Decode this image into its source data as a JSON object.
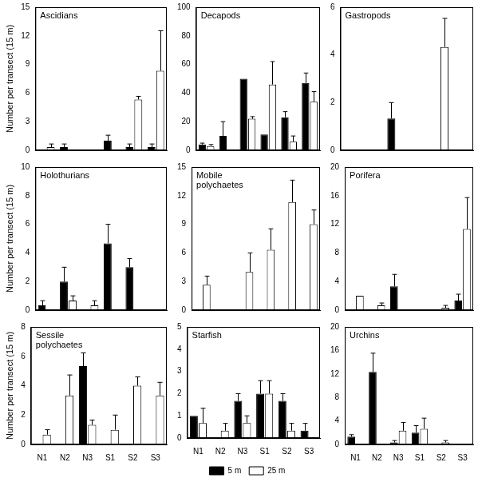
{
  "chart_data": [
    {
      "type": "bar",
      "title": "Ascidians",
      "y_label": "Number per transect (15 m)",
      "tick_labels": "y",
      "categories": [
        "N1",
        "N2",
        "N3",
        "S1",
        "S2",
        "S3"
      ],
      "series": [
        {
          "name": "5 m",
          "color": "#000000",
          "values": [
            null,
            0.33,
            null,
            1,
            0.33,
            0.33
          ],
          "errors": [
            null,
            0.33,
            null,
            0.58,
            0.33,
            0.33
          ]
        },
        {
          "name": "25 m",
          "color": "#ffffff",
          "values": [
            0.33,
            null,
            null,
            null,
            5.33,
            8.33
          ],
          "errors": [
            0.33,
            null,
            null,
            null,
            0.33,
            4.2
          ]
        }
      ],
      "ylim": [
        0,
        15
      ],
      "yticks": [
        0,
        3,
        6,
        9,
        12,
        15
      ]
    },
    {
      "type": "bar",
      "title": "Decapods",
      "tick_labels": "y",
      "categories": [
        "N1",
        "N2",
        "N3",
        "S1",
        "S2",
        "S3"
      ],
      "series": [
        {
          "name": "5 m",
          "color": "#000000",
          "values": [
            4,
            10,
            50,
            11,
            23,
            47
          ],
          "errors": [
            1,
            10,
            null,
            null,
            4,
            7
          ]
        },
        {
          "name": "25 m",
          "color": "#ffffff",
          "values": [
            3,
            null,
            22,
            46,
            6,
            34
          ],
          "errors": [
            1,
            null,
            1.5,
            16,
            4,
            7
          ]
        }
      ],
      "ylim": [
        0,
        100
      ],
      "yticks": [
        0,
        20,
        40,
        60,
        80,
        100
      ]
    },
    {
      "type": "bar",
      "title": "Gastropods",
      "tick_labels": "y",
      "categories": [
        "N1",
        "N2",
        "N3",
        "S1",
        "S2",
        "S3"
      ],
      "series": [
        {
          "name": "5 m",
          "color": "#000000",
          "values": [
            null,
            null,
            1.33,
            null,
            null,
            null
          ],
          "errors": [
            null,
            null,
            0.67,
            null,
            null,
            null
          ]
        },
        {
          "name": "25 m",
          "color": "#ffffff",
          "values": [
            null,
            null,
            null,
            null,
            4.33,
            null
          ],
          "errors": [
            null,
            null,
            null,
            null,
            1.2,
            null
          ]
        }
      ],
      "ylim": [
        0,
        6
      ],
      "yticks": [
        0,
        2,
        4,
        6
      ]
    },
    {
      "type": "bar",
      "title": "Holothurians",
      "y_label": "Number per transect (15 m)",
      "tick_labels": "y",
      "categories": [
        "N1",
        "N2",
        "N3",
        "S1",
        "S2",
        "S3"
      ],
      "series": [
        {
          "name": "5 m",
          "color": "#000000",
          "values": [
            0.33,
            2,
            null,
            4.67,
            3,
            null
          ],
          "errors": [
            0.33,
            1,
            null,
            1.33,
            0.6,
            null
          ]
        },
        {
          "name": "25 m",
          "color": "#ffffff",
          "values": [
            null,
            0.67,
            0.33,
            null,
            null,
            null
          ],
          "errors": [
            null,
            0.33,
            0.33,
            null,
            null,
            null
          ]
        }
      ],
      "ylim": [
        0,
        10
      ],
      "yticks": [
        0,
        2,
        4,
        6,
        8,
        10
      ]
    },
    {
      "type": "bar",
      "title": "Mobile polychaetes",
      "tick_labels": "y",
      "categories": [
        "N1",
        "N2",
        "N3",
        "S1",
        "S2",
        "S3"
      ],
      "series": [
        {
          "name": "5 m",
          "color": "#000000",
          "values": [
            null,
            null,
            null,
            null,
            null,
            null
          ],
          "errors": [
            null,
            null,
            null,
            null,
            null,
            null
          ]
        },
        {
          "name": "25 m",
          "color": "#ffffff",
          "values": [
            2.67,
            null,
            4,
            6.33,
            11.33,
            9
          ],
          "errors": [
            0.9,
            null,
            2,
            2.2,
            2.3,
            1.5
          ]
        }
      ],
      "ylim": [
        0,
        15
      ],
      "yticks": [
        0,
        3,
        6,
        9,
        12,
        15
      ]
    },
    {
      "type": "bar",
      "title": "Porifera",
      "tick_labels": "y",
      "categories": [
        "N1",
        "N2",
        "N3",
        "S1",
        "S2",
        "S3"
      ],
      "series": [
        {
          "name": "5 m",
          "color": "#000000",
          "values": [
            null,
            null,
            3.33,
            null,
            null,
            1.33
          ],
          "errors": [
            null,
            null,
            1.67,
            null,
            null,
            0.9
          ]
        },
        {
          "name": "25 m",
          "color": "#ffffff",
          "values": [
            2,
            0.67,
            null,
            null,
            0.33,
            11.33
          ],
          "errors": [
            null,
            0.33,
            null,
            null,
            0.33,
            4.4
          ]
        }
      ],
      "ylim": [
        0,
        20
      ],
      "yticks": [
        0,
        4,
        8,
        12,
        16,
        20
      ]
    },
    {
      "type": "bar",
      "title": "Sessile polychaetes",
      "y_label": "Number per transect (15 m)",
      "categories": [
        "N1",
        "N2",
        "N3",
        "S1",
        "S2",
        "S3"
      ],
      "series": [
        {
          "name": "5 m",
          "color": "#000000",
          "values": [
            null,
            null,
            5.33,
            null,
            null,
            null
          ],
          "errors": [
            null,
            null,
            0.9,
            null,
            null,
            null
          ]
        },
        {
          "name": "25 m",
          "color": "#ffffff",
          "values": [
            0.67,
            3.33,
            1.33,
            1,
            4,
            3.33
          ],
          "errors": [
            0.33,
            1.4,
            0.33,
            1,
            0.6,
            0.9
          ]
        }
      ],
      "ylim": [
        0,
        8
      ],
      "yticks": [
        0,
        2,
        4,
        6,
        8
      ]
    },
    {
      "type": "bar",
      "title": "Starfish",
      "legend": "bottom",
      "categories": [
        "N1",
        "N2",
        "N3",
        "S1",
        "S2",
        "S3"
      ],
      "series": [
        {
          "name": "5 m",
          "color": "#000000",
          "values": [
            1,
            null,
            1.67,
            2,
            1.67,
            0.33
          ],
          "errors": [
            null,
            null,
            0.33,
            0.58,
            0.33,
            0.33
          ]
        },
        {
          "name": "25 m",
          "color": "#ffffff",
          "values": [
            0.67,
            0.33,
            0.67,
            2,
            0.33,
            null
          ],
          "errors": [
            0.67,
            0.33,
            0.33,
            0.58,
            0.33,
            null
          ]
        }
      ],
      "ylim": [
        0,
        5
      ],
      "yticks": [
        0,
        1,
        2,
        3,
        4,
        5
      ]
    },
    {
      "type": "bar",
      "title": "Urchins",
      "categories": [
        "N1",
        "N2",
        "N3",
        "S1",
        "S2",
        "S3"
      ],
      "series": [
        {
          "name": "5 m",
          "color": "#000000",
          "values": [
            1.33,
            12.33,
            0.33,
            2,
            null,
            null
          ],
          "errors": [
            0.33,
            3.2,
            0.33,
            1.2,
            null,
            null
          ]
        },
        {
          "name": "25 m",
          "color": "#ffffff",
          "values": [
            null,
            null,
            2.33,
            2.67,
            0.33,
            null
          ],
          "errors": [
            null,
            null,
            1.4,
            1.8,
            0.33,
            null
          ]
        }
      ],
      "ylim": [
        0,
        20
      ],
      "yticks": [
        0,
        4,
        8,
        12,
        16,
        20
      ]
    }
  ]
}
